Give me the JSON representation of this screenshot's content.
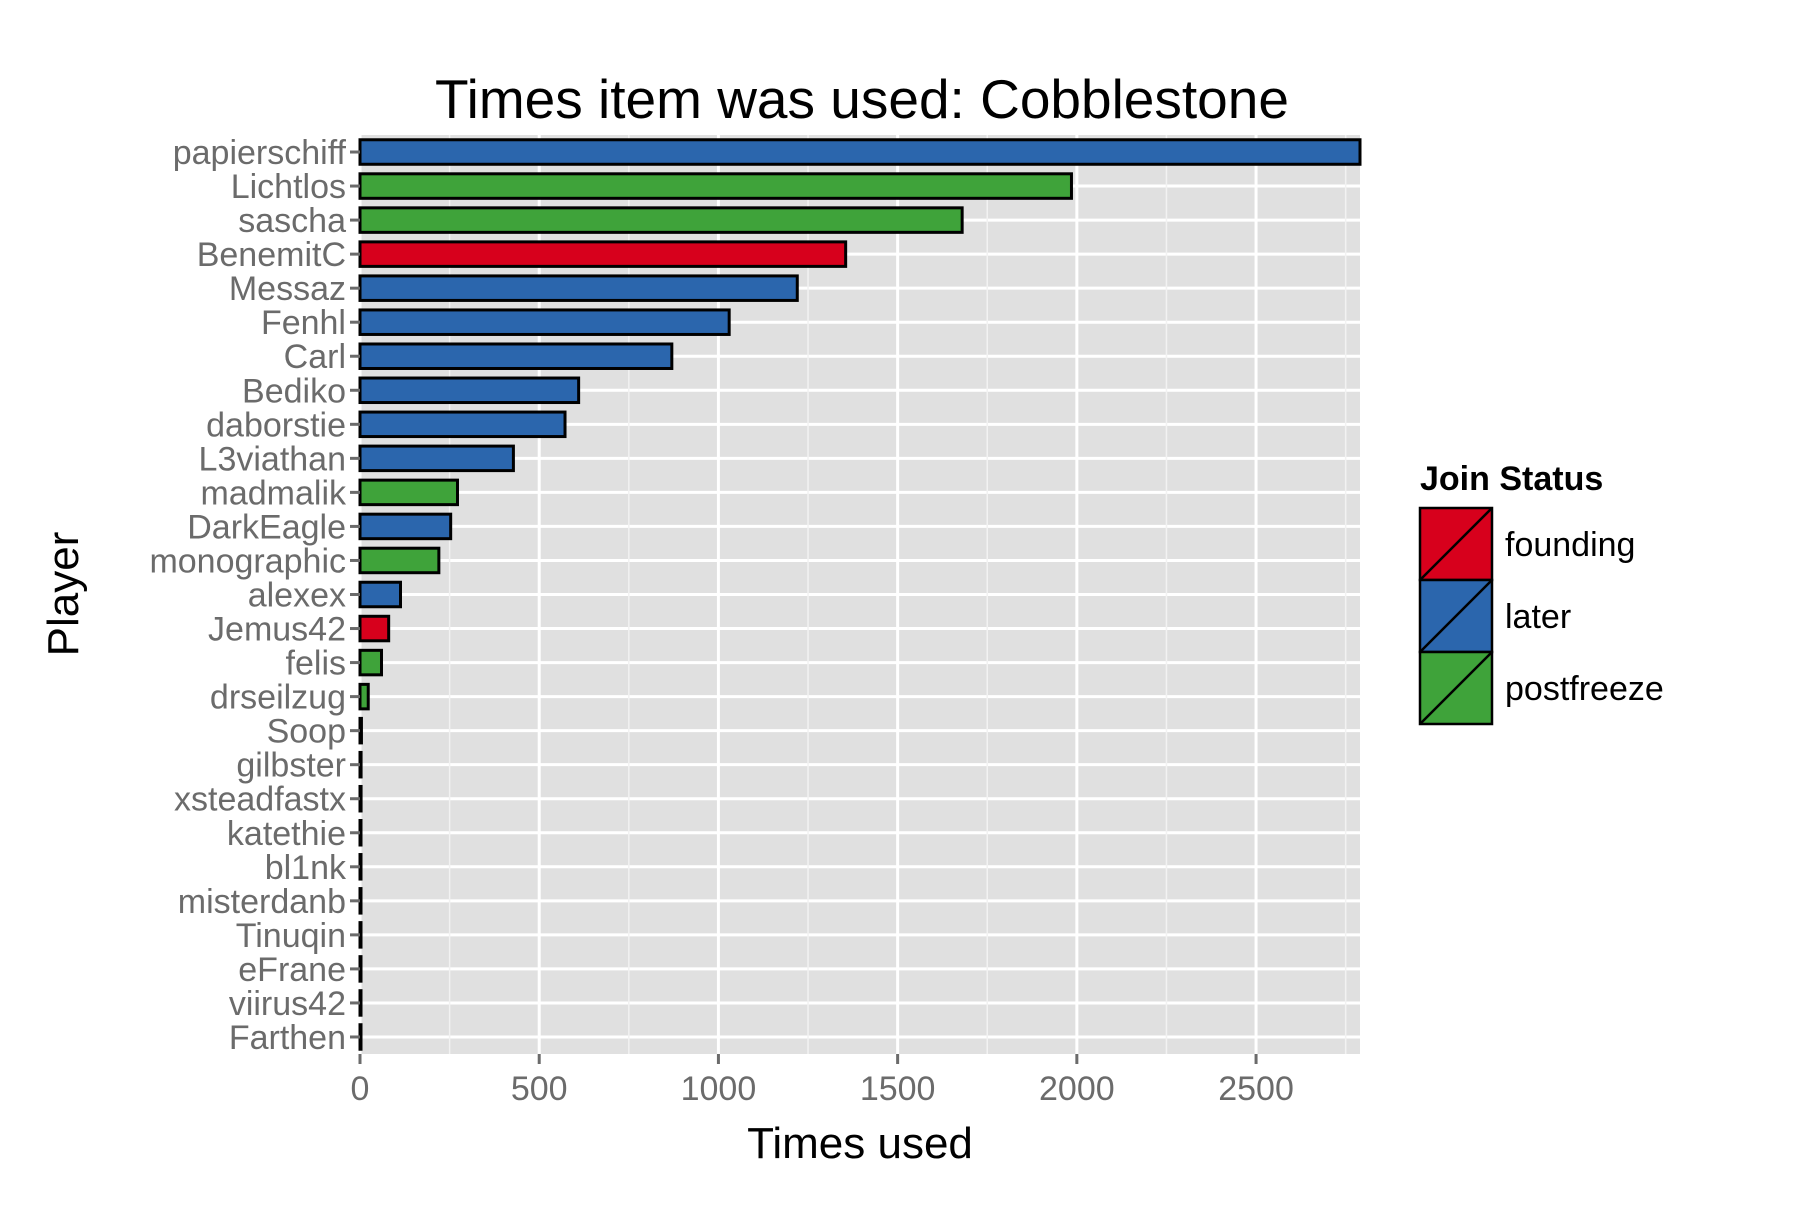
{
  "chart_data": {
    "type": "bar",
    "orientation": "horizontal",
    "title": "Times item was used: Cobblestone",
    "xlabel": "Times used",
    "ylabel": "Player",
    "xlim": [
      0,
      2790
    ],
    "x_ticks": [
      0,
      500,
      1000,
      1500,
      2000,
      2500
    ],
    "grid": true,
    "legend": {
      "title": "Join Status",
      "placement": "right",
      "entries": [
        {
          "key": "founding",
          "label": "founding",
          "color": "#d7001c"
        },
        {
          "key": "later",
          "label": "later",
          "color": "#2b66ad"
        },
        {
          "key": "postfreeze",
          "label": "postfreeze",
          "color": "#3fa33a"
        }
      ]
    },
    "categories": [
      "papierschiff",
      "Lichtlos",
      "sascha",
      "BenemitC",
      "Messaz",
      "Fenhl",
      "Carl",
      "Bediko",
      "daborstie",
      "L3viathan",
      "madmalik",
      "DarkEagle",
      "monographic",
      "alexex",
      "Jemus42",
      "felis",
      "drseilzug",
      "Soop",
      "gilbster",
      "xsteadfastx",
      "katethie",
      "bl1nk",
      "misterdanb",
      "Tinuqin",
      "eFrane",
      "viirus42",
      "Farthen"
    ],
    "values": [
      2790,
      1985,
      1680,
      1355,
      1220,
      1030,
      870,
      610,
      572,
      428,
      272,
      253,
      220,
      113,
      80,
      60,
      23,
      4,
      3,
      3,
      2,
      2,
      2,
      1,
      1,
      1,
      1
    ],
    "groups": [
      "later",
      "postfreeze",
      "postfreeze",
      "founding",
      "later",
      "later",
      "later",
      "later",
      "later",
      "later",
      "postfreeze",
      "later",
      "postfreeze",
      "later",
      "founding",
      "postfreeze",
      "postfreeze",
      "later",
      "later",
      "later",
      "later",
      "later",
      "later",
      "later",
      "later",
      "later",
      "later"
    ]
  }
}
